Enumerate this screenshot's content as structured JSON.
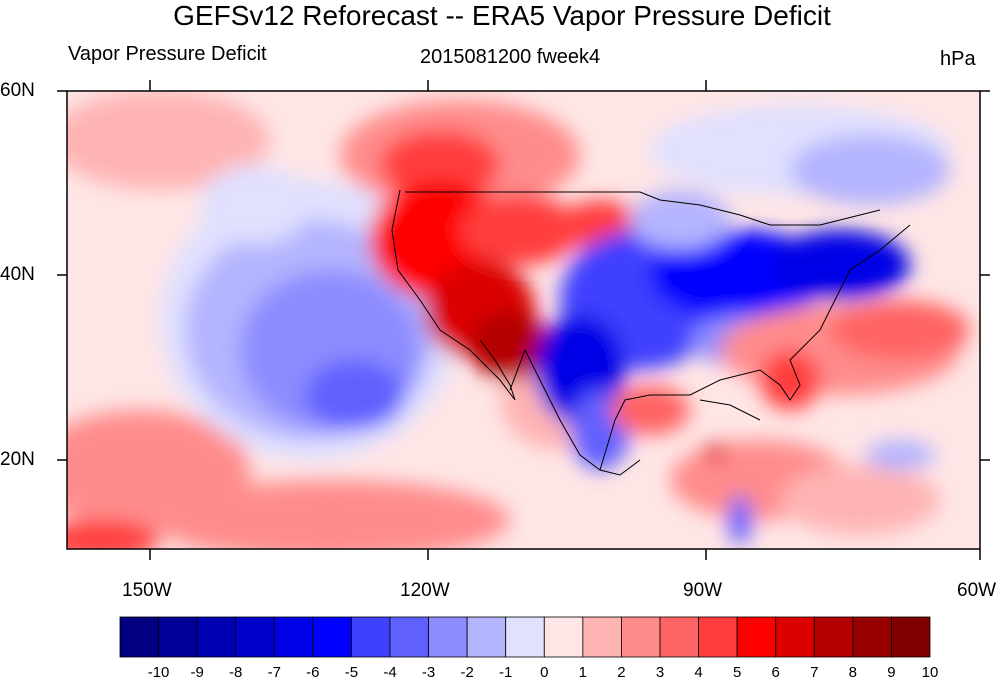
{
  "title": "GEFSv12 Reforecast -- ERA5 Vapor Pressure Deficit",
  "subtitle_left": "Vapor Pressure Deficit",
  "subtitle_center": "2015081200 fweek4",
  "subtitle_right": "hPa",
  "lat_labels": [
    "60N",
    "40N",
    "20N"
  ],
  "lon_labels": [
    "150W",
    "120W",
    "90W",
    "60W"
  ],
  "colorbar": {
    "labels": [
      "-10",
      "-9",
      "-8",
      "-7",
      "-6",
      "-5",
      "-4",
      "-3",
      "-2",
      "-1",
      "0",
      "1",
      "2",
      "3",
      "4",
      "5",
      "6",
      "7",
      "8",
      "9",
      "10"
    ],
    "colors": [
      "#000080",
      "#000099",
      "#0000b3",
      "#0000cc",
      "#0000e6",
      "#0000ff",
      "#4040ff",
      "#6060ff",
      "#8c8cff",
      "#b4b4ff",
      "#e0e0ff",
      "#ffe6e6",
      "#ffb4b4",
      "#ff8c8c",
      "#ff6464",
      "#ff3c3c",
      "#ff0000",
      "#dc0000",
      "#b40000",
      "#960000",
      "#800000"
    ]
  },
  "map": {
    "projection": "lat-lon",
    "lon_range": [
      -160,
      -60
    ],
    "lat_range": [
      10,
      60
    ],
    "palette": "blue-white-red"
  }
}
